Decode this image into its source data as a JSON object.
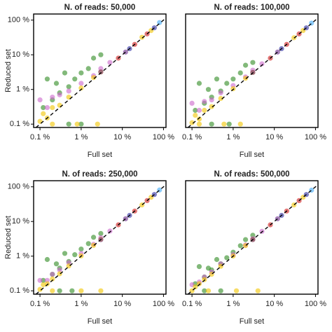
{
  "chart_data": [
    {
      "type": "scatter",
      "title": "N. of reads: 50,000",
      "xlabel": "Full set",
      "ylabel": "Reduced set",
      "log": true,
      "xlim": [
        0.07,
        115
      ],
      "ylim": [
        0.08,
        150
      ],
      "xticks": [
        {
          "value": 0.1,
          "label": "0.1 %"
        },
        {
          "value": 1,
          "label": "1 %"
        },
        {
          "value": 10,
          "label": "10 %"
        },
        {
          "value": 100,
          "label": "100 %"
        }
      ],
      "yticks": [
        {
          "value": 0.1,
          "label": "0.1 %"
        },
        {
          "value": 1,
          "label": "1 %"
        },
        {
          "value": 10,
          "label": "10 %"
        },
        {
          "value": 100,
          "label": "100 %"
        }
      ],
      "series": [
        {
          "color": "#2e8b22",
          "x": [
            0.12,
            0.15,
            0.2,
            0.25,
            0.3,
            0.4,
            0.5,
            0.7,
            1,
            1.5,
            2,
            3,
            0.5,
            1
          ],
          "y": [
            0.3,
            2,
            0.5,
            1.5,
            0.8,
            3,
            1.2,
            2,
            3,
            4,
            8,
            10,
            0.1,
            0.1
          ]
        },
        {
          "color": "#cc66cc",
          "x": [
            0.1,
            0.15,
            0.2,
            0.3,
            0.5,
            1,
            2,
            3,
            5
          ],
          "y": [
            0.5,
            0.3,
            0.6,
            0.7,
            0.9,
            1.5,
            2.5,
            4,
            6
          ]
        },
        {
          "color": "#f2c500",
          "x": [
            0.1,
            0.12,
            0.15,
            0.2,
            0.3,
            0.5,
            1,
            2,
            3,
            0.2,
            0.8,
            2.5,
            30,
            50
          ],
          "y": [
            0.12,
            0.2,
            0.15,
            0.3,
            0.35,
            0.6,
            1.1,
            2.2,
            3.2,
            0.1,
            0.1,
            0.1,
            32,
            50
          ]
        },
        {
          "color": "#d11a1a",
          "x": [
            8,
            20,
            40
          ],
          "y": [
            8,
            20,
            40
          ]
        },
        {
          "color": "#2a2aa0",
          "x": [
            15,
            60
          ],
          "y": [
            15,
            60
          ]
        },
        {
          "color": "#3fa9f5",
          "x": [
            80
          ],
          "y": [
            85
          ]
        },
        {
          "color": "#6a2a8a",
          "x": [
            3,
            12
          ],
          "y": [
            3.2,
            12
          ]
        }
      ]
    },
    {
      "type": "scatter",
      "title": "N. of reads: 100,000",
      "xlabel": "Full set",
      "log": true,
      "xlim": [
        0.07,
        115
      ],
      "ylim": [
        0.08,
        150
      ],
      "xticks": [
        {
          "value": 0.1,
          "label": "0.1 %"
        },
        {
          "value": 1,
          "label": "1 %"
        },
        {
          "value": 10,
          "label": "10 %"
        },
        {
          "value": 100,
          "label": "100 %"
        }
      ],
      "series": [
        {
          "color": "#2e8b22",
          "x": [
            0.12,
            0.15,
            0.2,
            0.25,
            0.3,
            0.4,
            0.5,
            0.7,
            1,
            1.5,
            2,
            3,
            0.3,
            0.8
          ],
          "y": [
            0.25,
            1.5,
            0.4,
            1,
            0.6,
            2,
            0.9,
            1.5,
            2,
            3,
            5,
            6,
            0.1,
            0.1
          ]
        },
        {
          "color": "#cc66cc",
          "x": [
            0.1,
            0.15,
            0.2,
            0.3,
            0.5,
            1,
            2,
            3,
            5
          ],
          "y": [
            0.4,
            0.25,
            0.45,
            0.5,
            0.8,
            1.3,
            2.3,
            3.6,
            5.5
          ]
        },
        {
          "color": "#f2c500",
          "x": [
            0.1,
            0.12,
            0.15,
            0.2,
            0.3,
            0.5,
            1,
            2,
            3,
            0.15,
            0.6,
            1.5,
            30,
            50
          ],
          "y": [
            0.11,
            0.18,
            0.14,
            0.25,
            0.32,
            0.55,
            1.05,
            2.1,
            3.1,
            0.1,
            0.1,
            0.1,
            31,
            50
          ]
        },
        {
          "color": "#d11a1a",
          "x": [
            8,
            20,
            40
          ],
          "y": [
            8,
            20,
            40
          ]
        },
        {
          "color": "#2a2aa0",
          "x": [
            15,
            60
          ],
          "y": [
            15,
            60
          ]
        },
        {
          "color": "#3fa9f5",
          "x": [
            80
          ],
          "y": [
            82
          ]
        },
        {
          "color": "#6a2a8a",
          "x": [
            3,
            12
          ],
          "y": [
            3.1,
            12
          ]
        }
      ]
    },
    {
      "type": "scatter",
      "title": "N. of reads: 250,000",
      "xlabel": "Full set",
      "ylabel": "Reduced set",
      "log": true,
      "xlim": [
        0.07,
        115
      ],
      "ylim": [
        0.08,
        150
      ],
      "xticks": [
        {
          "value": 0.1,
          "label": "0.1 %"
        },
        {
          "value": 1,
          "label": "1 %"
        },
        {
          "value": 10,
          "label": "10 %"
        },
        {
          "value": 100,
          "label": "100 %"
        }
      ],
      "yticks": [
        {
          "value": 0.1,
          "label": "0.1 %"
        },
        {
          "value": 1,
          "label": "1 %"
        },
        {
          "value": 10,
          "label": "10 %"
        },
        {
          "value": 100,
          "label": "100 %"
        }
      ],
      "series": [
        {
          "color": "#2e8b22",
          "x": [
            0.12,
            0.15,
            0.2,
            0.25,
            0.3,
            0.4,
            0.5,
            0.7,
            1,
            1.5,
            2,
            3,
            0.3,
            0.6
          ],
          "y": [
            0.2,
            0.8,
            0.3,
            0.6,
            0.45,
            1.2,
            0.7,
            1.1,
            1.6,
            2.3,
            3.5,
            4.5,
            0.1,
            0.1
          ]
        },
        {
          "color": "#cc66cc",
          "x": [
            0.1,
            0.15,
            0.2,
            0.3,
            0.5,
            1,
            2,
            3,
            5
          ],
          "y": [
            0.2,
            0.2,
            0.3,
            0.4,
            0.65,
            1.2,
            2.2,
            3.4,
            5.3
          ]
        },
        {
          "color": "#f2c500",
          "x": [
            0.1,
            0.12,
            0.15,
            0.2,
            0.3,
            0.5,
            1,
            2,
            3,
            0.2,
            1,
            3,
            30,
            50
          ],
          "y": [
            0.11,
            0.15,
            0.16,
            0.22,
            0.31,
            0.52,
            1.02,
            2.05,
            3.05,
            0.1,
            0.1,
            0.1,
            30,
            50
          ]
        },
        {
          "color": "#d11a1a",
          "x": [
            8,
            20,
            40
          ],
          "y": [
            8,
            20,
            40
          ]
        },
        {
          "color": "#2a2aa0",
          "x": [
            15,
            60
          ],
          "y": [
            15,
            60
          ]
        },
        {
          "color": "#3fa9f5",
          "x": [
            80
          ],
          "y": [
            81
          ]
        },
        {
          "color": "#6a2a8a",
          "x": [
            3,
            12
          ],
          "y": [
            3,
            12
          ]
        }
      ]
    },
    {
      "type": "scatter",
      "title": "N. of reads: 500,000",
      "xlabel": "Full set",
      "log": true,
      "xlim": [
        0.07,
        115
      ],
      "ylim": [
        0.08,
        150
      ],
      "xticks": [
        {
          "value": 0.1,
          "label": "0.1 %"
        },
        {
          "value": 1,
          "label": "1 %"
        },
        {
          "value": 10,
          "label": "10 %"
        },
        {
          "value": 100,
          "label": "100 %"
        }
      ],
      "series": [
        {
          "color": "#2e8b22",
          "x": [
            0.12,
            0.15,
            0.2,
            0.25,
            0.3,
            0.4,
            0.5,
            0.7,
            1,
            1.5,
            2,
            3,
            0.2,
            0.5
          ],
          "y": [
            0.16,
            0.5,
            0.25,
            0.45,
            0.4,
            0.8,
            0.6,
            0.9,
            1.3,
            2,
            3,
            4,
            0.1,
            0.1
          ]
        },
        {
          "color": "#cc66cc",
          "x": [
            0.1,
            0.15,
            0.2,
            0.3,
            0.5,
            1,
            2,
            3,
            5
          ],
          "y": [
            0.15,
            0.18,
            0.25,
            0.35,
            0.6,
            1.1,
            2.1,
            3.2,
            5.2
          ]
        },
        {
          "color": "#f2c500",
          "x": [
            0.1,
            0.12,
            0.15,
            0.2,
            0.3,
            0.5,
            1,
            2,
            3,
            0.25,
            1.2,
            4,
            30,
            50
          ],
          "y": [
            0.1,
            0.13,
            0.16,
            0.21,
            0.3,
            0.51,
            1.01,
            2.02,
            3.02,
            0.1,
            0.1,
            0.1,
            30,
            50
          ]
        },
        {
          "color": "#d11a1a",
          "x": [
            8,
            20,
            40
          ],
          "y": [
            8,
            20,
            40
          ]
        },
        {
          "color": "#2a2aa0",
          "x": [
            15,
            60
          ],
          "y": [
            15,
            60
          ]
        },
        {
          "color": "#3fa9f5",
          "x": [
            80
          ],
          "y": [
            80
          ]
        },
        {
          "color": "#6a2a8a",
          "x": [
            3,
            12
          ],
          "y": [
            3,
            12
          ]
        }
      ]
    }
  ]
}
